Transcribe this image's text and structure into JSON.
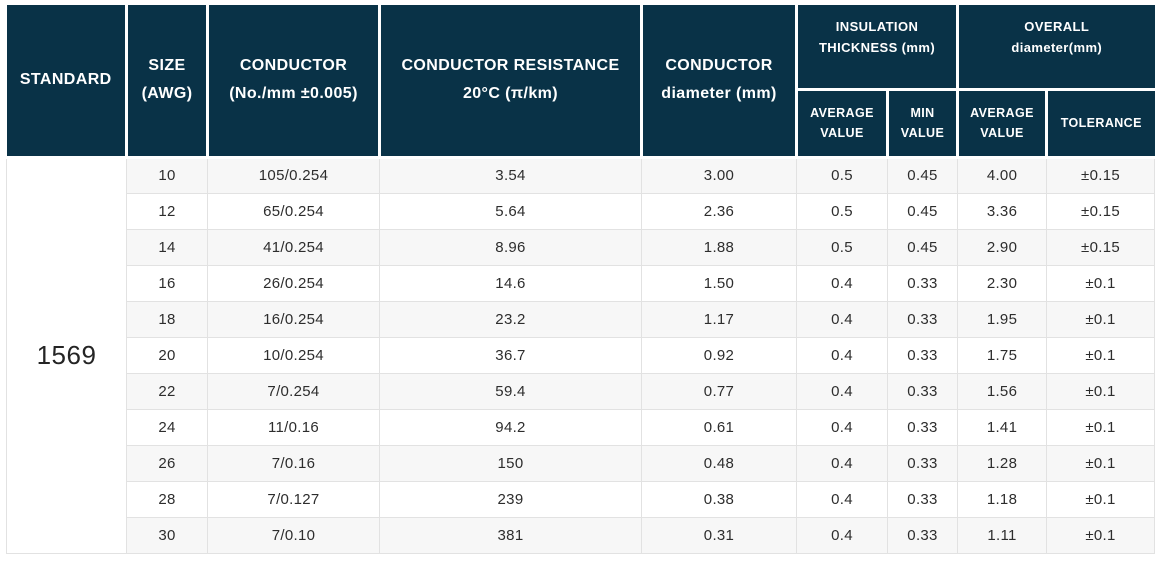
{
  "table": {
    "headers": {
      "standard": "STANDARD",
      "size": "SIZE\n(AWG)",
      "conductor": "CONDUCTOR\n(No./mm ±0.005)",
      "resistance": "CONDUCTOR RESISTANCE\n20°C (π/km)",
      "diameter": "CONDUCTOR\ndiameter (mm)",
      "insulation_group": "INSULATION\nTHICKNESS (mm)",
      "insulation_avg": "AVERAGE\nVALUE",
      "insulation_min": "MIN\nVALUE",
      "overall_group": "OVERALL\ndiameter(mm)",
      "overall_avg": "AVERAGE\nVALUE",
      "overall_tolerance": "TOLERANCE"
    },
    "standard_value": "1569",
    "rows": [
      [
        "10",
        "105/0.254",
        "3.54",
        "3.00",
        "0.5",
        "0.45",
        "4.00",
        "±0.15"
      ],
      [
        "12",
        "65/0.254",
        "5.64",
        "2.36",
        "0.5",
        "0.45",
        "3.36",
        "±0.15"
      ],
      [
        "14",
        "41/0.254",
        "8.96",
        "1.88",
        "0.5",
        "0.45",
        "2.90",
        "±0.15"
      ],
      [
        "16",
        "26/0.254",
        "14.6",
        "1.50",
        "0.4",
        "0.33",
        "2.30",
        "±0.1"
      ],
      [
        "18",
        "16/0.254",
        "23.2",
        "1.17",
        "0.4",
        "0.33",
        "1.95",
        "±0.1"
      ],
      [
        "20",
        "10/0.254",
        "36.7",
        "0.92",
        "0.4",
        "0.33",
        "1.75",
        "±0.1"
      ],
      [
        "22",
        "7/0.254",
        "59.4",
        "0.77",
        "0.4",
        "0.33",
        "1.56",
        "±0.1"
      ],
      [
        "24",
        "11/0.16",
        "94.2",
        "0.61",
        "0.4",
        "0.33",
        "1.41",
        "±0.1"
      ],
      [
        "26",
        "7/0.16",
        "150",
        "0.48",
        "0.4",
        "0.33",
        "1.28",
        "±0.1"
      ],
      [
        "28",
        "7/0.127",
        "239",
        "0.38",
        "0.4",
        "0.33",
        "1.18",
        "±0.1"
      ],
      [
        "30",
        "7/0.10",
        "381",
        "0.31",
        "0.4",
        "0.33",
        "1.11",
        "±0.1"
      ]
    ],
    "colors": {
      "header_bg": "#093247",
      "header_text": "#ffffff",
      "row_stripe": "#f7f7f7",
      "body_text": "#2d2d2d",
      "grid_line": "#e2e2e2"
    }
  }
}
